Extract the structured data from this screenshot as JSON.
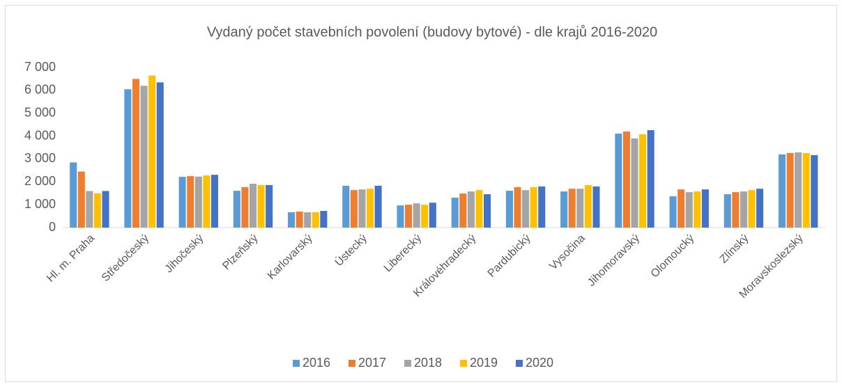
{
  "chart_data": {
    "type": "bar",
    "title": "Vydaný počet stavebních povolení (budovy bytové) - dle krajů 2016-2020",
    "categories": [
      "Hl. m. Praha",
      "Středočeský",
      "Jihočeský",
      "Plzeňský",
      "Karlovarský",
      "Ústecký",
      "Liberecký",
      "Královéhradecký",
      "Pardubický",
      "Vysočina",
      "Jihomoravský",
      "Olomoucký",
      "Zlínský",
      "Moravskoslezský"
    ],
    "series": [
      {
        "name": "2016",
        "color": "#5b9bd5",
        "values": [
          2850,
          6050,
          2220,
          1610,
          670,
          1830,
          970,
          1310,
          1610,
          1580,
          4110,
          1370,
          1460,
          3200
        ]
      },
      {
        "name": "2017",
        "color": "#ed7d31",
        "values": [
          2450,
          6500,
          2250,
          1770,
          700,
          1640,
          1000,
          1490,
          1770,
          1700,
          4200,
          1670,
          1550,
          3260
        ]
      },
      {
        "name": "2018",
        "color": "#a5a5a5",
        "values": [
          1600,
          6200,
          2230,
          1920,
          670,
          1670,
          1060,
          1580,
          1640,
          1700,
          3900,
          1550,
          1580,
          3290
        ]
      },
      {
        "name": "2019",
        "color": "#ffc000",
        "values": [
          1500,
          6650,
          2280,
          1860,
          670,
          1700,
          1000,
          1640,
          1770,
          1860,
          4080,
          1580,
          1640,
          3260
        ]
      },
      {
        "name": "2020",
        "color": "#4472c4",
        "values": [
          1600,
          6350,
          2310,
          1860,
          730,
          1830,
          1090,
          1460,
          1800,
          1800,
          4260,
          1670,
          1700,
          3170
        ]
      }
    ],
    "ylim": [
      0,
      7000
    ],
    "yticks": [
      0,
      {
        "value": 1000,
        "label": "1 000"
      },
      {
        "value": 2000,
        "label": "2 000"
      },
      {
        "value": 3000,
        "label": "3 000"
      },
      {
        "value": 4000,
        "label": "4 000"
      },
      {
        "value": 5000,
        "label": "5 000"
      },
      {
        "value": 6000,
        "label": "6 000"
      },
      {
        "value": 7000,
        "label": "7 000"
      }
    ],
    "grid": false,
    "legend": "bottom"
  }
}
